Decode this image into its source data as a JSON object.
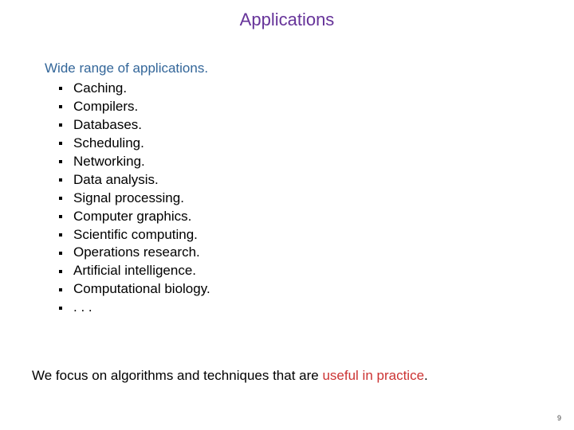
{
  "title": "Applications",
  "heading_lead": "Wide range of applications.",
  "bullets": [
    "Caching.",
    "Compilers.",
    "Databases.",
    "Scheduling.",
    "Networking.",
    "Data analysis.",
    "Signal processing.",
    "Computer graphics.",
    "Scientific computing.",
    "Operations research.",
    "Artificial intelligence.",
    "Computational biology.",
    ". . ."
  ],
  "footer_pre": "We focus on algorithms and techniques that are ",
  "footer_emph": "useful in practice",
  "footer_post": ".",
  "page_number": "9",
  "colors": {
    "title": "#663399",
    "lead": "#336699",
    "emph": "#cc3333",
    "text": "#000000",
    "background": "#ffffff"
  },
  "typography": {
    "font_family": "Comic Sans MS",
    "title_fontsize_pt": 17,
    "body_fontsize_pt": 13
  }
}
